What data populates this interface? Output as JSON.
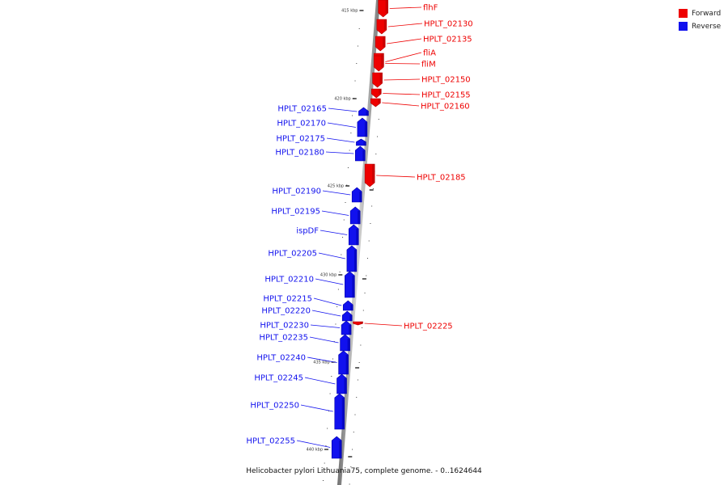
{
  "caption": "Helicobacter pylori Lithuania75, complete genome. - 0..1624644",
  "legend": [
    {
      "label": "Forward",
      "color": "#ee0000"
    },
    {
      "label": "Reverse",
      "color": "#1111ee"
    }
  ],
  "scale_labels": [
    "415 kbp",
    "420 kbp",
    "425 kbp",
    "430 kbp",
    "435 kbp",
    "440 kbp"
  ],
  "genes": [
    {
      "name": "flhF",
      "strand": "forward"
    },
    {
      "name": "HPLT_02130",
      "strand": "forward"
    },
    {
      "name": "HPLT_02135",
      "strand": "forward"
    },
    {
      "name": "fliA",
      "strand": "forward"
    },
    {
      "name": "fliM",
      "strand": "forward"
    },
    {
      "name": "HPLT_02150",
      "strand": "forward"
    },
    {
      "name": "HPLT_02155",
      "strand": "forward"
    },
    {
      "name": "HPLT_02160",
      "strand": "forward"
    },
    {
      "name": "HPLT_02165",
      "strand": "reverse"
    },
    {
      "name": "HPLT_02170",
      "strand": "reverse"
    },
    {
      "name": "HPLT_02175",
      "strand": "reverse"
    },
    {
      "name": "HPLT_02180",
      "strand": "reverse"
    },
    {
      "name": "HPLT_02185",
      "strand": "forward"
    },
    {
      "name": "HPLT_02190",
      "strand": "reverse"
    },
    {
      "name": "HPLT_02195",
      "strand": "reverse"
    },
    {
      "name": "ispDF",
      "strand": "reverse"
    },
    {
      "name": "HPLT_02205",
      "strand": "reverse"
    },
    {
      "name": "HPLT_02210",
      "strand": "reverse"
    },
    {
      "name": "HPLT_02215",
      "strand": "reverse"
    },
    {
      "name": "HPLT_02220",
      "strand": "reverse"
    },
    {
      "name": "HPLT_02225",
      "strand": "forward"
    },
    {
      "name": "HPLT_02230",
      "strand": "reverse"
    },
    {
      "name": "HPLT_02235",
      "strand": "reverse"
    },
    {
      "name": "HPLT_02240",
      "strand": "reverse"
    },
    {
      "name": "HPLT_02245",
      "strand": "reverse"
    },
    {
      "name": "HPLT_02250",
      "strand": "reverse"
    },
    {
      "name": "HPLT_02255",
      "strand": "reverse"
    }
  ]
}
